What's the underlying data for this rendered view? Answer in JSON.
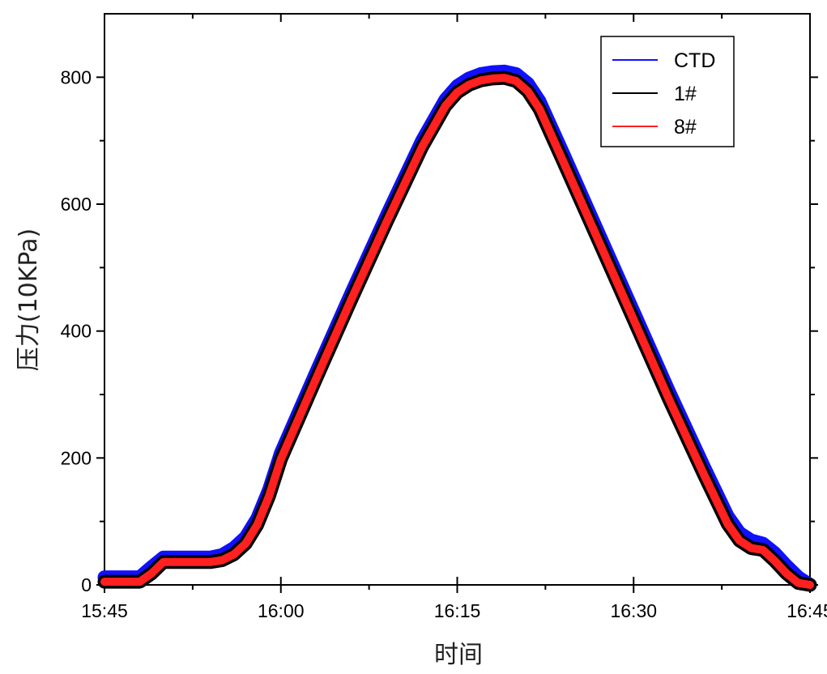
{
  "chart_data": {
    "type": "line",
    "title": "",
    "xlabel": "时间",
    "ylabel": "压力(10KPa)",
    "x_unit": "time HH:MM",
    "xlim": [
      "15:45",
      "16:45"
    ],
    "ylim": [
      0,
      900
    ],
    "x_ticks": [
      "15:45",
      "16:00",
      "16:15",
      "16:30",
      "16:45"
    ],
    "y_ticks": [
      0,
      200,
      400,
      600,
      800
    ],
    "grid": false,
    "legend_position": "top-right",
    "series": [
      {
        "name": "CTD",
        "color": "#1010ff",
        "x": [
          "15:45",
          "15:48",
          "15:49",
          "15:50",
          "15:52",
          "15:54",
          "15:55",
          "15:56",
          "15:57",
          "15:58",
          "15:59",
          "16:00",
          "16:03",
          "16:06",
          "16:09",
          "16:12",
          "16:14",
          "16:15",
          "16:16",
          "16:17",
          "16:18",
          "16:19",
          "16:20",
          "16:21",
          "16:22",
          "16:24",
          "16:27",
          "16:30",
          "16:33",
          "16:36",
          "16:38",
          "16:39",
          "16:40",
          "16:41",
          "16:42",
          "16:43",
          "16:44",
          "16:45"
        ],
        "y": [
          12,
          12,
          28,
          43,
          43,
          43,
          47,
          58,
          75,
          105,
          150,
          208,
          335,
          460,
          582,
          700,
          765,
          786,
          798,
          805,
          808,
          809,
          805,
          790,
          762,
          680,
          555,
          430,
          305,
          185,
          108,
          82,
          70,
          65,
          50,
          30,
          12,
          0
        ]
      },
      {
        "name": "1#",
        "color": "#000000",
        "x": [
          "15:45",
          "15:48",
          "15:49",
          "15:50",
          "15:52",
          "15:54",
          "15:55",
          "15:56",
          "15:57",
          "15:58",
          "15:59",
          "16:00",
          "16:03",
          "16:06",
          "16:09",
          "16:12",
          "16:14",
          "16:15",
          "16:16",
          "16:17",
          "16:18",
          "16:19",
          "16:20",
          "16:21",
          "16:22",
          "16:24",
          "16:27",
          "16:30",
          "16:33",
          "16:36",
          "16:38",
          "16:39",
          "16:40",
          "16:41",
          "16:42",
          "16:43",
          "16:44",
          "16:45"
        ],
        "y": [
          5,
          5,
          18,
          36,
          36,
          36,
          39,
          48,
          65,
          95,
          140,
          198,
          325,
          450,
          572,
          690,
          755,
          776,
          788,
          795,
          798,
          799,
          794,
          778,
          750,
          668,
          543,
          418,
          293,
          173,
          96,
          70,
          58,
          55,
          38,
          18,
          3,
          0
        ]
      },
      {
        "name": "8#",
        "color": "#ff2020",
        "x": [
          "15:45",
          "15:48",
          "15:49",
          "15:50",
          "15:52",
          "15:54",
          "15:55",
          "15:56",
          "15:57",
          "15:58",
          "15:59",
          "16:00",
          "16:03",
          "16:06",
          "16:09",
          "16:12",
          "16:14",
          "16:15",
          "16:16",
          "16:17",
          "16:18",
          "16:19",
          "16:20",
          "16:21",
          "16:22",
          "16:24",
          "16:27",
          "16:30",
          "16:33",
          "16:36",
          "16:38",
          "16:39",
          "16:40",
          "16:41",
          "16:42",
          "16:43",
          "16:44",
          "16:45"
        ],
        "y": [
          5,
          5,
          18,
          36,
          36,
          36,
          39,
          48,
          65,
          95,
          140,
          198,
          325,
          450,
          572,
          690,
          755,
          776,
          788,
          795,
          798,
          799,
          794,
          778,
          750,
          668,
          543,
          418,
          293,
          173,
          96,
          70,
          58,
          55,
          38,
          18,
          3,
          0
        ]
      }
    ]
  }
}
